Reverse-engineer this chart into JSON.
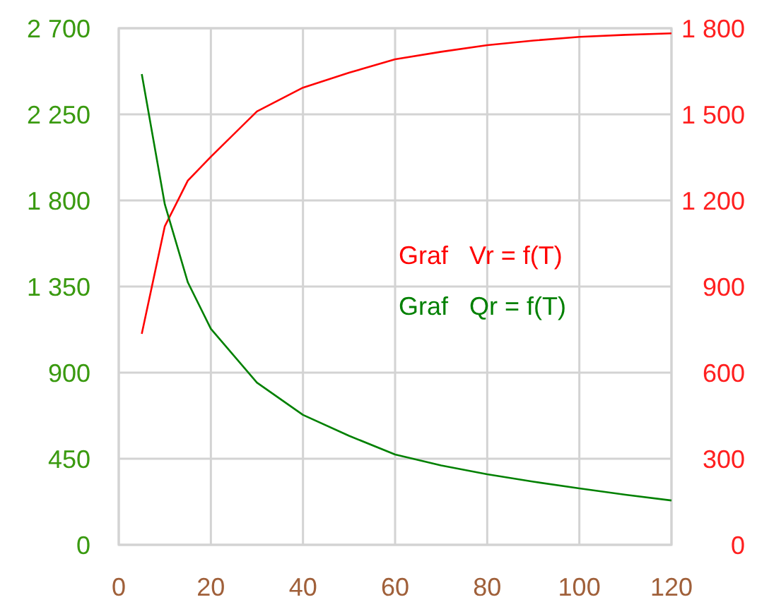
{
  "chart_data": {
    "type": "line",
    "x": [
      5,
      10,
      15,
      20,
      30,
      40,
      50,
      60,
      70,
      80,
      90,
      100,
      110,
      120
    ],
    "series": [
      {
        "name": "Graf   Vr = f(T)",
        "color": "#ff0000",
        "axis": "y2",
        "values": [
          735,
          1110,
          1269,
          1352,
          1510,
          1593,
          1645,
          1692,
          1718,
          1741,
          1757,
          1770,
          1777,
          1782
        ]
      },
      {
        "name": "Graf   Qr = f(T)",
        "color": "#008000",
        "values": [
          2460,
          1780,
          1372,
          1129,
          848,
          679,
          570,
          472,
          415,
          369,
          330,
          295,
          262,
          232
        ]
      }
    ],
    "xlim": [
      0,
      120
    ],
    "xticks": [
      0,
      20,
      40,
      60,
      80,
      100,
      120
    ],
    "ylim": [
      0,
      2700
    ],
    "yticks": [
      0,
      {
        "value": 450,
        "label": "450"
      },
      {
        "value": 900,
        "label": "900"
      },
      {
        "value": 1350,
        "label": "1 350"
      },
      {
        "value": 1800,
        "label": "1 800"
      },
      {
        "value": 2250,
        "label": "2 250"
      },
      {
        "value": 2700,
        "label": "2 700"
      }
    ],
    "y2lim": [
      0,
      1800
    ],
    "y2ticks": [
      0,
      300,
      600,
      900,
      {
        "value": 1200,
        "label": "1 200"
      },
      {
        "value": 1500,
        "label": "1 500"
      },
      {
        "value": 1800,
        "label": "1 800"
      }
    ],
    "grid": true,
    "legend": "right",
    "marker": "none",
    "line_style": "solid"
  }
}
